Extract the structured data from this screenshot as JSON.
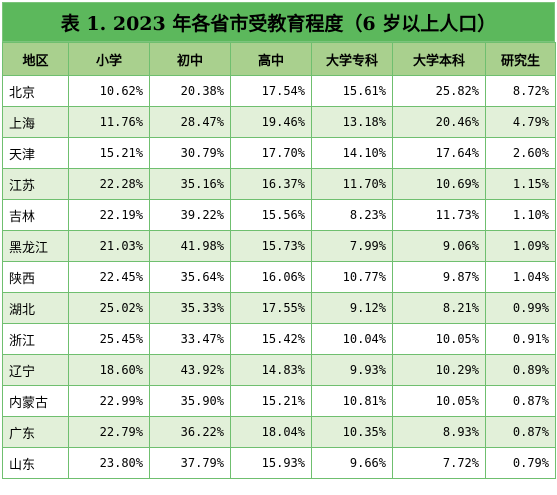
{
  "title": "表 1. 2023 年各省市受教育程度（6 岁以上人口）",
  "headers": [
    "地区",
    "小学",
    "初中",
    "高中",
    "大学专科",
    "大学本科",
    "研究生"
  ],
  "rows": [
    [
      "北京",
      "10.62%",
      "20.38%",
      "17.54%",
      "15.61%",
      "25.82%",
      "8.72%"
    ],
    [
      "上海",
      "11.76%",
      "28.47%",
      "19.46%",
      "13.18%",
      "20.46%",
      "4.79%"
    ],
    [
      "天津",
      "15.21%",
      "30.79%",
      "17.70%",
      "14.10%",
      "17.64%",
      "2.60%"
    ],
    [
      "江苏",
      "22.28%",
      "35.16%",
      "16.37%",
      "11.70%",
      "10.69%",
      "1.15%"
    ],
    [
      "吉林",
      "22.19%",
      "39.22%",
      "15.56%",
      "8.23%",
      "11.73%",
      "1.10%"
    ],
    [
      "黑龙江",
      "21.03%",
      "41.98%",
      "15.73%",
      "7.99%",
      "9.06%",
      "1.09%"
    ],
    [
      "陕西",
      "22.45%",
      "35.64%",
      "16.06%",
      "10.77%",
      "9.87%",
      "1.04%"
    ],
    [
      "湖北",
      "25.02%",
      "35.33%",
      "17.55%",
      "9.12%",
      "8.21%",
      "0.99%"
    ],
    [
      "浙江",
      "25.45%",
      "33.47%",
      "15.42%",
      "10.04%",
      "10.05%",
      "0.91%"
    ],
    [
      "辽宁",
      "18.60%",
      "43.92%",
      "14.83%",
      "9.93%",
      "10.29%",
      "0.89%"
    ],
    [
      "内蒙古",
      "22.99%",
      "35.90%",
      "15.21%",
      "10.81%",
      "10.05%",
      "0.87%"
    ],
    [
      "广东",
      "22.79%",
      "36.22%",
      "18.04%",
      "10.35%",
      "8.93%",
      "0.87%"
    ],
    [
      "山东",
      "23.80%",
      "37.79%",
      "15.93%",
      "9.66%",
      "7.72%",
      "0.79%"
    ]
  ],
  "colors": {
    "title_bg": "#5cb85c",
    "header_bg": "#a9d08e",
    "stripe_bg": "#e2f0d9",
    "border": "#6fbf6f"
  }
}
